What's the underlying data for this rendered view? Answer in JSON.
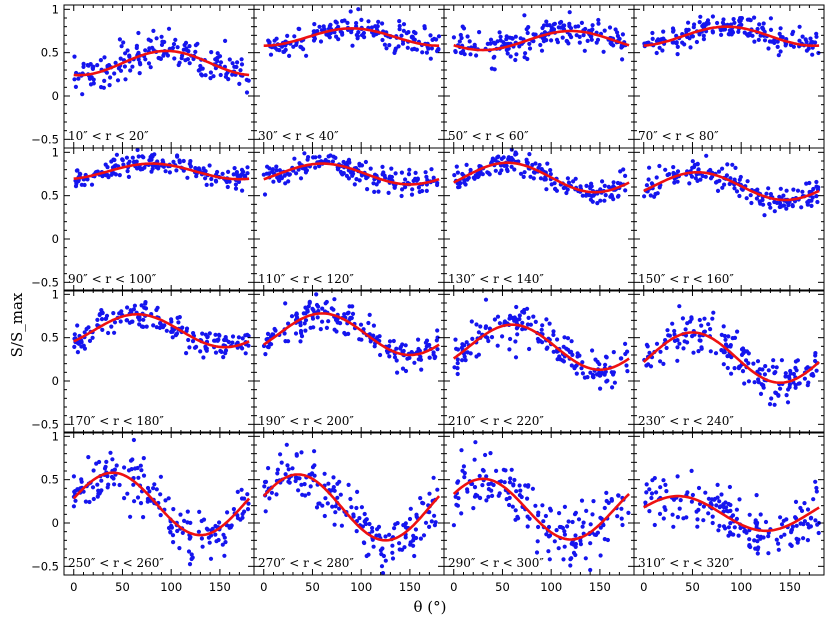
{
  "chart_data": {
    "type": "scatter",
    "layout": "4x4 grid of panels with shared axes",
    "xlabel": "θ (°)",
    "ylabel": "S/S_max",
    "xlim": [
      -10,
      185
    ],
    "ylim": [
      -0.6,
      1.05
    ],
    "x_ticks": [
      0,
      50,
      100,
      150
    ],
    "y_ticks": [
      -0.5,
      0,
      0.5,
      1
    ],
    "x_tick_labels": [
      "0",
      "50",
      "100",
      "150"
    ],
    "y_tick_labels": [
      "−0.5",
      "0",
      "0.5",
      "1"
    ],
    "series_styles": {
      "points": "#1515ee",
      "fit": "#ee1111"
    },
    "panels": [
      {
        "label": "10″ < r < 20″",
        "fit": {
          "offset": 0.38,
          "amplitude": 0.14,
          "peak_deg": 95
        },
        "scatter": 0.11
      },
      {
        "label": "30″ < r < 40″",
        "fit": {
          "offset": 0.68,
          "amplitude": 0.1,
          "peak_deg": 90
        },
        "scatter": 0.08
      },
      {
        "label": "50″ < r < 60″",
        "fit": {
          "offset": 0.64,
          "amplitude": 0.11,
          "peak_deg": 120
        },
        "scatter": 0.09
      },
      {
        "label": "70″ < r < 80″",
        "fit": {
          "offset": 0.69,
          "amplitude": 0.11,
          "peak_deg": 85
        },
        "scatter": 0.07
      },
      {
        "label": "90″ < r < 100″",
        "fit": {
          "offset": 0.78,
          "amplitude": 0.09,
          "peak_deg": 80
        },
        "scatter": 0.06
      },
      {
        "label": "110″ < r < 120″",
        "fit": {
          "offset": 0.75,
          "amplitude": 0.12,
          "peak_deg": 60
        },
        "scatter": 0.07
      },
      {
        "label": "130″ < r < 140″",
        "fit": {
          "offset": 0.71,
          "amplitude": 0.17,
          "peak_deg": 55
        },
        "scatter": 0.07
      },
      {
        "label": "150″ < r < 160″",
        "fit": {
          "offset": 0.61,
          "amplitude": 0.16,
          "peak_deg": 55
        },
        "scatter": 0.08
      },
      {
        "label": "170″ < r < 180″",
        "fit": {
          "offset": 0.58,
          "amplitude": 0.19,
          "peak_deg": 65
        },
        "scatter": 0.08
      },
      {
        "label": "190″ < r < 200″",
        "fit": {
          "offset": 0.54,
          "amplitude": 0.24,
          "peak_deg": 60
        },
        "scatter": 0.09
      },
      {
        "label": "210″ < r < 220″",
        "fit": {
          "offset": 0.39,
          "amplitude": 0.26,
          "peak_deg": 60
        },
        "scatter": 0.11
      },
      {
        "label": "230″ < r < 240″",
        "fit": {
          "offset": 0.27,
          "amplitude": 0.29,
          "peak_deg": 50
        },
        "scatter": 0.13
      },
      {
        "label": "250″ < r < 260″",
        "fit": {
          "offset": 0.22,
          "amplitude": 0.36,
          "peak_deg": 40
        },
        "scatter": 0.15
      },
      {
        "label": "270″ < r < 280″",
        "fit": {
          "offset": 0.18,
          "amplitude": 0.38,
          "peak_deg": 35
        },
        "scatter": 0.16
      },
      {
        "label": "290″ < r < 300″",
        "fit": {
          "offset": 0.16,
          "amplitude": 0.35,
          "peak_deg": 30
        },
        "scatter": 0.16
      },
      {
        "label": "310″ < r < 320″",
        "fit": {
          "offset": 0.11,
          "amplitude": 0.2,
          "peak_deg": 35
        },
        "scatter": 0.14
      }
    ]
  }
}
